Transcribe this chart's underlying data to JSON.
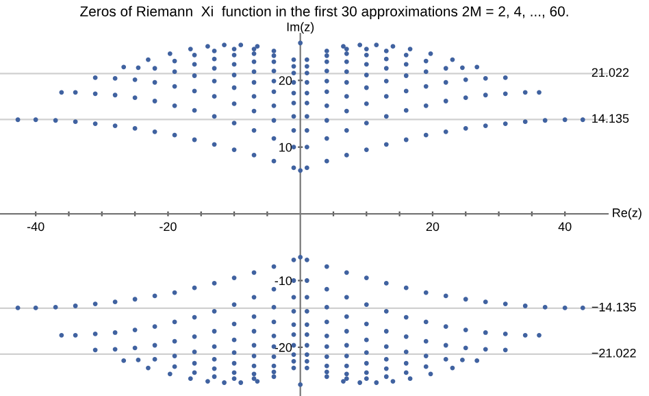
{
  "chart_data": {
    "type": "scatter",
    "title": "Zeros of Riemann  Xi  function in the first 30 approximations 2M = 2, 4, ..., 60.",
    "xlabel": "Re(z)",
    "ylabel": "Im(z)",
    "xlim": [
      -45.4,
      46.5
    ],
    "ylim": [
      -27.3,
      27
    ],
    "xticks": [
      -40,
      {
        "value": -35,
        "label": null
      },
      {
        "value": -30,
        "label": null
      },
      {
        "value": -25,
        "label": null
      },
      -20,
      {
        "value": -15,
        "label": null
      },
      {
        "value": -10,
        "label": null
      },
      {
        "value": -5,
        "label": null
      },
      {
        "value": 5,
        "label": null
      },
      {
        "value": 10,
        "label": null
      },
      {
        "value": 15,
        "label": null
      },
      20,
      {
        "value": 25,
        "label": null
      },
      {
        "value": 30,
        "label": null
      },
      {
        "value": 35,
        "label": null
      },
      40
    ],
    "yticks": [
      -20,
      -10,
      10,
      20
    ],
    "marker": "circle",
    "grid": false,
    "ref_lines": [
      {
        "axis": "y",
        "value": 21.022,
        "label": "21.022",
        "color": "#d0d0d0"
      },
      {
        "axis": "y",
        "value": 14.135,
        "label": "14.135",
        "color": "#d0d0d0"
      },
      {
        "axis": "y",
        "value": -14.135,
        "label": "−14.135",
        "color": "#d0d0d0"
      },
      {
        "axis": "y",
        "value": -21.022,
        "label": "−21.022",
        "color": "#d0d0d0"
      }
    ],
    "series": [
      {
        "color": "#4062a0",
        "x": [
          -42.7,
          -40,
          -37,
          -34,
          -31,
          -28,
          -25,
          -22,
          -19,
          -16,
          -13,
          -10,
          -7,
          -4,
          -1,
          1,
          4,
          7,
          10,
          13,
          16,
          19,
          22,
          25,
          28,
          31,
          34,
          37,
          40,
          42.7,
          -42.7,
          -40,
          -37,
          -34,
          -31,
          -28,
          -25,
          -22,
          -19,
          -16,
          -13,
          -10,
          -7,
          -4,
          -1,
          1,
          4,
          7,
          10,
          13,
          16,
          19,
          22,
          25,
          28,
          31,
          34,
          37,
          40,
          42.7
        ],
        "values": [
          14.1,
          14.1,
          14.0,
          13.8,
          13.5,
          13.2,
          12.8,
          12.3,
          11.8,
          11.1,
          10.4,
          9.6,
          8.8,
          7.9,
          6.9,
          6.9,
          7.9,
          8.8,
          9.6,
          10.4,
          11.1,
          11.8,
          12.3,
          12.8,
          13.2,
          13.5,
          13.8,
          14.0,
          14.1,
          14.1,
          -14.1,
          -14.1,
          -14.0,
          -13.8,
          -13.5,
          -13.2,
          -12.8,
          -12.3,
          -11.8,
          -11.1,
          -10.4,
          -9.6,
          -8.8,
          -7.9,
          -6.9,
          -6.9,
          -7.9,
          -8.8,
          -9.6,
          -10.4,
          -11.1,
          -11.8,
          -12.3,
          -12.8,
          -13.2,
          -13.5,
          -13.8,
          -14.0,
          -14.1,
          -14.1
        ]
      },
      {
        "color": "#4062a0",
        "x": [
          -36.1,
          -34,
          -31,
          -28,
          -25,
          -22,
          -19,
          -16,
          -13,
          -10,
          -7,
          -4,
          -1,
          1,
          4,
          7,
          10,
          13,
          16,
          19,
          22,
          25,
          28,
          31,
          34,
          36.1,
          -36.1,
          -34,
          -31,
          -28,
          -25,
          -22,
          -19,
          -16,
          -13,
          -10,
          -7,
          -4,
          -1,
          1,
          4,
          7,
          10,
          13,
          16,
          19,
          22,
          25,
          28,
          31,
          34,
          36.1
        ],
        "values": [
          18.2,
          18.2,
          18.0,
          17.8,
          17.4,
          16.9,
          16.2,
          15.5,
          14.6,
          13.6,
          12.5,
          11.3,
          10.0,
          10.0,
          11.3,
          12.5,
          13.6,
          14.6,
          15.5,
          16.2,
          16.9,
          17.4,
          17.8,
          18.0,
          18.2,
          18.2,
          -18.2,
          -18.2,
          -18.0,
          -17.8,
          -17.4,
          -16.9,
          -16.2,
          -15.5,
          -14.6,
          -13.6,
          -12.5,
          -11.3,
          -10.0,
          -10.0,
          -11.3,
          -12.5,
          -13.6,
          -14.6,
          -15.5,
          -16.2,
          -16.9,
          -17.4,
          -17.8,
          -18.0,
          -18.2,
          -18.2
        ]
      },
      {
        "color": "#4062a0",
        "x": [
          -31,
          -28,
          -25,
          -22,
          -19,
          -16,
          -13,
          -10,
          -7,
          -4,
          -1,
          1,
          4,
          7,
          10,
          13,
          16,
          19,
          22,
          25,
          28,
          31,
          -31,
          -28,
          -25,
          -22,
          -19,
          -16,
          -13,
          -10,
          -7,
          -4,
          -1,
          1,
          4,
          7,
          10,
          13,
          16,
          19,
          22,
          25,
          28,
          31
        ],
        "values": [
          20.4,
          20.3,
          20.1,
          19.7,
          19.1,
          18.4,
          17.6,
          16.5,
          15.4,
          14.0,
          12.5,
          12.5,
          14.0,
          15.4,
          16.5,
          17.6,
          18.4,
          19.1,
          19.7,
          20.1,
          20.3,
          20.4,
          -20.4,
          -20.3,
          -20.1,
          -19.7,
          -19.1,
          -18.4,
          -17.6,
          -16.5,
          -15.4,
          -14.0,
          -12.5,
          -12.5,
          -14.0,
          -15.4,
          -16.5,
          -17.6,
          -18.4,
          -19.1,
          -19.7,
          -20.1,
          -20.3,
          -20.4
        ]
      },
      {
        "color": "#4062a0",
        "x": [
          -26.7,
          -24.5,
          -22,
          -19,
          -16,
          -13,
          -10,
          -7,
          -4,
          -1,
          1,
          4,
          7,
          10,
          13,
          16,
          19,
          22,
          24.5,
          26.7,
          -26.7,
          -24.5,
          -22,
          -19,
          -16,
          -13,
          -10,
          -7,
          -4,
          -1,
          1,
          4,
          7,
          10,
          13,
          16,
          19,
          22,
          24.5,
          26.7
        ],
        "values": [
          22.0,
          21.9,
          21.8,
          21.3,
          20.7,
          19.9,
          18.9,
          17.6,
          16.2,
          14.6,
          14.6,
          16.2,
          17.6,
          18.9,
          19.9,
          20.7,
          21.3,
          21.8,
          21.9,
          22.0,
          -22.0,
          -21.9,
          -21.8,
          -21.3,
          -20.7,
          -19.9,
          -18.9,
          -17.6,
          -16.2,
          -14.6,
          -14.6,
          -16.2,
          -17.6,
          -18.9,
          -19.9,
          -20.7,
          -21.3,
          -21.8,
          -21.9,
          -22.0
        ]
      },
      {
        "color": "#4062a0",
        "x": [
          -23,
          -19,
          -16,
          -13,
          -10,
          -7,
          -4,
          -1,
          1,
          4,
          7,
          10,
          13,
          16,
          19,
          23,
          -23,
          -19,
          -16,
          -13,
          -10,
          -7,
          -4,
          -1,
          1,
          4,
          7,
          10,
          13,
          16,
          19,
          23
        ],
        "values": [
          23.1,
          22.9,
          22.4,
          21.8,
          20.8,
          19.7,
          18.3,
          16.6,
          16.6,
          18.3,
          19.7,
          20.8,
          21.8,
          22.4,
          22.9,
          23.1,
          -23.1,
          -22.9,
          -22.4,
          -21.8,
          -20.8,
          -19.7,
          -18.3,
          -16.6,
          -16.6,
          -18.3,
          -19.7,
          -20.8,
          -21.8,
          -22.4,
          -22.9,
          -23.1
        ]
      },
      {
        "color": "#4062a0",
        "x": [
          -19.7,
          -16,
          -13,
          -10,
          -7,
          -4,
          -1,
          1,
          4,
          7,
          10,
          13,
          16,
          19.7,
          -19.7,
          -16,
          -13,
          -10,
          -7,
          -4,
          -1,
          1,
          4,
          7,
          10,
          13,
          16,
          19.7
        ],
        "values": [
          24.0,
          23.8,
          23.2,
          22.4,
          21.3,
          19.9,
          18.1,
          18.1,
          19.9,
          21.3,
          22.4,
          23.2,
          23.8,
          24.0,
          -24.0,
          -23.8,
          -23.2,
          -22.4,
          -21.3,
          -19.9,
          -18.1,
          -18.1,
          -19.9,
          -21.3,
          -22.4,
          -23.2,
          -23.8,
          -24.0
        ]
      },
      {
        "color": "#4062a0",
        "x": [
          -16.6,
          -13,
          -10,
          -7,
          -4,
          -1,
          1,
          4,
          7,
          10,
          13,
          16.6,
          -16.6,
          -13,
          -10,
          -7,
          -4,
          -1,
          1,
          4,
          7,
          10,
          13,
          16.6
        ],
        "values": [
          24.7,
          24.4,
          23.8,
          22.8,
          21.4,
          19.7,
          19.7,
          21.4,
          22.8,
          23.8,
          24.4,
          24.7,
          -24.7,
          -24.4,
          -23.8,
          -22.8,
          -21.4,
          -19.7,
          -19.7,
          -21.4,
          -22.8,
          -23.8,
          -24.4,
          -24.7
        ]
      },
      {
        "color": "#4062a0",
        "x": [
          -14,
          -10,
          -7,
          -4,
          -1,
          1,
          4,
          7,
          10,
          14,
          -14,
          -10,
          -7,
          -4,
          -1,
          1,
          4,
          7,
          10,
          14
        ],
        "values": [
          25.1,
          24.7,
          24.0,
          22.8,
          21.1,
          21.1,
          22.8,
          24.0,
          24.7,
          25.1,
          -25.1,
          -24.7,
          -24.0,
          -22.8,
          -21.1,
          -21.1,
          -22.8,
          -24.0,
          -24.7,
          -25.1
        ]
      },
      {
        "color": "#4062a0",
        "x": [
          -11.5,
          -7,
          -4,
          -1,
          1,
          4,
          7,
          11.5,
          -11.5,
          -7,
          -4,
          -1,
          1,
          4,
          7,
          11.5
        ],
        "values": [
          25.3,
          24.7,
          23.7,
          22.1,
          22.1,
          23.7,
          24.7,
          25.3,
          -25.3,
          -24.7,
          -23.7,
          -22.1,
          -22.1,
          -23.7,
          -24.7,
          -25.3
        ]
      },
      {
        "color": "#4062a0",
        "x": [
          -9,
          -6.5,
          -4,
          -1,
          1,
          4,
          6.5,
          9,
          -9,
          -6.5,
          -4,
          -1,
          1,
          4,
          6.5,
          9
        ],
        "values": [
          25.3,
          25.1,
          24.4,
          23.1,
          23.1,
          24.4,
          25.1,
          25.3,
          -25.3,
          -25.1,
          -24.4,
          -23.1,
          -23.1,
          -24.4,
          -25.1,
          -25.3
        ]
      },
      {
        "color": "#4062a0",
        "x": [
          0,
          0,
          0,
          0
        ],
        "values": [
          6.5,
          25.6,
          -6.5,
          -25.6
        ]
      }
    ]
  }
}
